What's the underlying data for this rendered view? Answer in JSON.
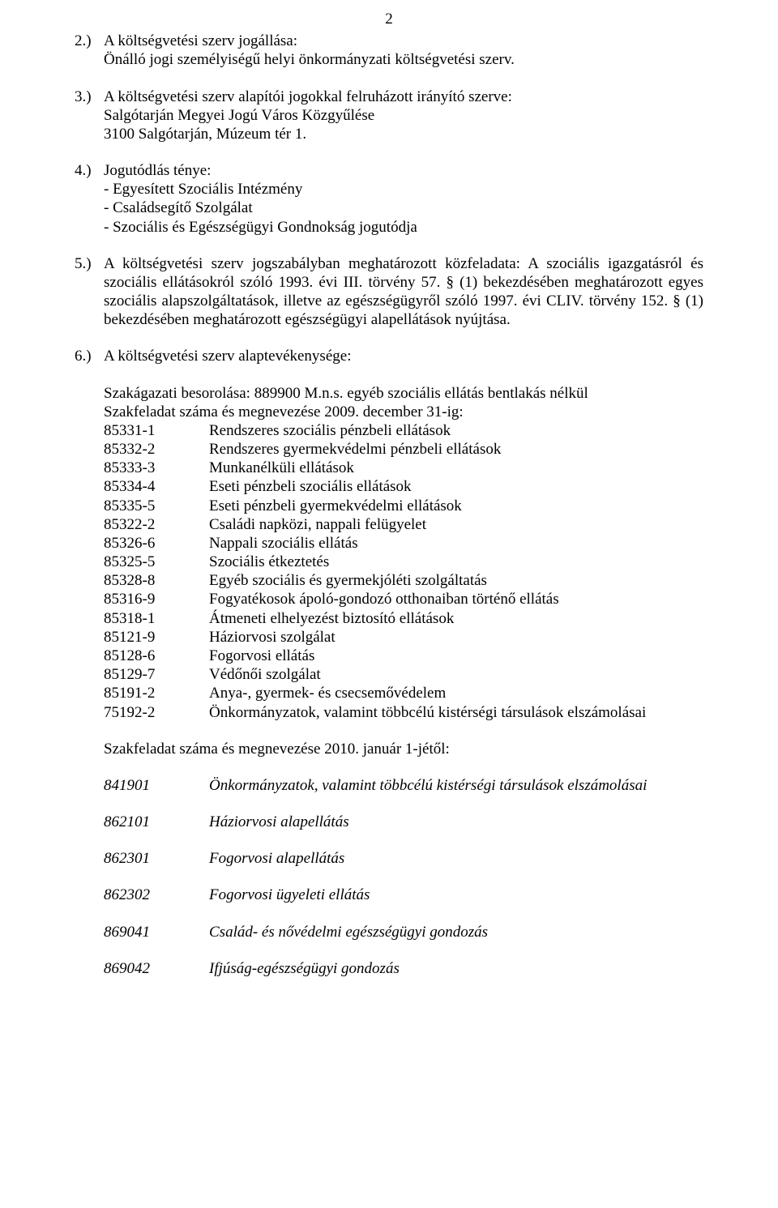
{
  "page_number": "2",
  "sections": {
    "s2": {
      "num": "2.)",
      "line1": "A költségvetési szerv jogállása:",
      "line2": "Önálló jogi személyiségű helyi önkormányzati költségvetési szerv."
    },
    "s3": {
      "num": "3.)",
      "line1": "A költségvetési szerv alapítói jogokkal felruházott irányító szerve:",
      "line2": "Salgótarján Megyei Jogú Város Közgyűlése",
      "line3": "3100 Salgótarján, Múzeum tér 1."
    },
    "s4": {
      "num": "4.)",
      "line1": "Jogutódlás ténye:",
      "b1": "- Egyesített Szociális Intézmény",
      "b2": "- Családsegítő Szolgálat",
      "b3": "- Szociális és Egészségügyi Gondnokság jogutódja"
    },
    "s5": {
      "num": "5.)",
      "body": "A költségvetési szerv jogszabályban meghatározott közfeladata: A szociális igazgatásról és szociális ellátásokról szóló 1993. évi III. törvény 57. § (1) bekezdésében meghatározott egyes szociális alapszolgáltatások, illetve az egészségügyről szóló 1997. évi CLIV. törvény 152. § (1) bekezdésében meghatározott egészségügyi alapellátások nyújtása."
    },
    "s6": {
      "num": "6.)",
      "line1": "A költségvetési szerv alaptevékenysége:",
      "besorolas": "Szakágazati besorolása: 889900 M.n.s. egyéb szociális ellátás bentlakás nélkül",
      "megnev2009": "Szakfeladat száma és megnevezése 2009. december 31-ig:",
      "rows2009": [
        {
          "code": "85331-1",
          "desc": "Rendszeres szociális pénzbeli ellátások"
        },
        {
          "code": "85332-2",
          "desc": "Rendszeres gyermekvédelmi pénzbeli ellátások"
        },
        {
          "code": "85333-3",
          "desc": "Munkanélküli ellátások"
        },
        {
          "code": "85334-4",
          "desc": "Eseti pénzbeli szociális ellátások"
        },
        {
          "code": "85335-5",
          "desc": "Eseti pénzbeli gyermekvédelmi ellátások"
        },
        {
          "code": "85322-2",
          "desc": "Családi napközi, nappali felügyelet"
        },
        {
          "code": "85326-6",
          "desc": "Nappali szociális ellátás"
        },
        {
          "code": "85325-5",
          "desc": "Szociális étkeztetés"
        },
        {
          "code": "85328-8",
          "desc": "Egyéb szociális és gyermekjóléti szolgáltatás"
        },
        {
          "code": "85316-9",
          "desc": "Fogyatékosok ápoló-gondozó otthonaiban történő ellátás"
        },
        {
          "code": "85318-1",
          "desc": "Átmeneti elhelyezést biztosító ellátások"
        },
        {
          "code": "85121-9",
          "desc": "Háziorvosi szolgálat"
        },
        {
          "code": "85128-6",
          "desc": "Fogorvosi ellátás"
        },
        {
          "code": "85129-7",
          "desc": "Védőnői szolgálat"
        },
        {
          "code": "85191-2",
          "desc": "Anya-, gyermek- és csecsemővédelem"
        },
        {
          "code": "75192-2",
          "desc": "Önkormányzatok, valamint többcélú kistérségi társulások elszámolásai"
        }
      ],
      "megnev2010": "Szakfeladat száma és megnevezése 2010. január 1-jétől:",
      "rows2010": [
        {
          "code": "841901",
          "desc": "Önkormányzatok, valamint többcélú kistérségi társulások elszámolásai"
        },
        {
          "code": "862101",
          "desc": "Háziorvosi alapellátás"
        },
        {
          "code": "862301",
          "desc": "Fogorvosi alapellátás"
        },
        {
          "code": "862302",
          "desc": "Fogorvosi ügyeleti ellátás"
        },
        {
          "code": "869041",
          "desc": "Család- és nővédelmi egészségügyi gondozás"
        },
        {
          "code": "869042",
          "desc": "Ifjúság-egészségügyi gondozás"
        }
      ]
    }
  }
}
